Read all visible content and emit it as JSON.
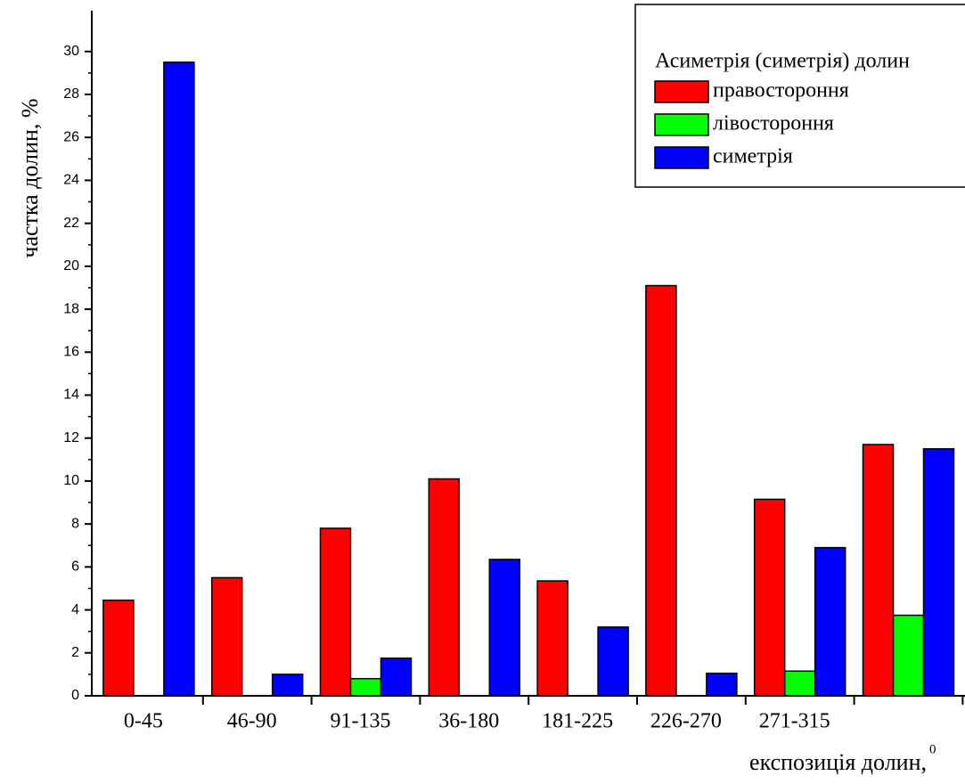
{
  "chart_data": {
    "type": "bar",
    "ylabel": "частка долин, %",
    "xlabel": "експозиція долин,",
    "xlabel_sup": "0",
    "legend_title": "Асиметрія (симетрія) долин",
    "categories": [
      "0-45",
      "46-90",
      "91-135",
      "36-180",
      "181-225",
      "226-270",
      "271-315",
      null
    ],
    "series": [
      {
        "name": "правостороння",
        "color": "#ff0000",
        "values": [
          4.45,
          5.5,
          7.8,
          10.1,
          5.35,
          19.1,
          9.15,
          11.7
        ]
      },
      {
        "name": "лівостороння",
        "color": "#00ff00",
        "values": [
          0,
          0,
          0.8,
          0,
          0,
          0,
          1.15,
          3.75
        ]
      },
      {
        "name": "симетрія",
        "color": "#0000ff",
        "values": [
          29.5,
          1.0,
          1.75,
          6.35,
          3.2,
          1.05,
          6.9,
          11.5
        ]
      }
    ],
    "ylim": [
      0,
      31.9
    ],
    "yticks": [
      0,
      2,
      4,
      6,
      8,
      10,
      12,
      14,
      16,
      18,
      20,
      22,
      24,
      26,
      28,
      30
    ],
    "legend": "upper right"
  }
}
